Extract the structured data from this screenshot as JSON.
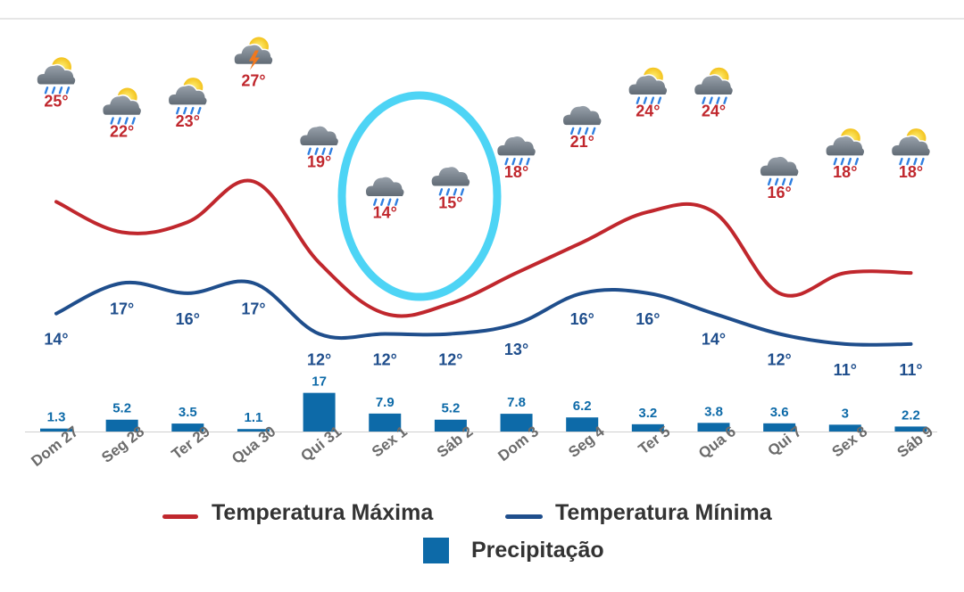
{
  "chart_data": {
    "type": "line",
    "categories": [
      "Dom 27",
      "Seg 28",
      "Ter 29",
      "Qua 30",
      "Qui 31",
      "Sex 1",
      "Sáb 2",
      "Dom 3",
      "Seg 4",
      "Ter 5",
      "Qua 6",
      "Qui 7",
      "Sex 8",
      "Sáb 9"
    ],
    "series": [
      {
        "name": "Temperatura Máxima",
        "values": [
          25,
          22,
          23,
          27,
          19,
          14,
          15,
          18,
          21,
          24,
          24,
          16,
          18,
          18
        ],
        "color": "#c0272d"
      },
      {
        "name": "Temperatura Mínima",
        "values": [
          14,
          17,
          16,
          17,
          12,
          12,
          12,
          13,
          16,
          16,
          14,
          12,
          11,
          11
        ],
        "color": "#1f4e8c"
      },
      {
        "name": "Precipitação",
        "type": "bar",
        "values": [
          1.3,
          5.2,
          3.5,
          1.1,
          17,
          7.9,
          5.2,
          7.8,
          6.2,
          3.2,
          3.8,
          3.6,
          3,
          2.2
        ],
        "color": "#0d6aa8"
      }
    ],
    "icons": [
      "partly-sunny-rain-icon",
      "partly-sunny-rain-icon",
      "partly-sunny-rain-icon",
      "sun-thunderstorm-icon",
      "rain-cloud-icon",
      "rain-cloud-icon",
      "rain-cloud-icon",
      "rain-cloud-icon",
      "rain-cloud-icon",
      "partly-sunny-rain-icon",
      "partly-sunny-rain-icon",
      "rain-cloud-icon",
      "partly-sunny-rain-icon",
      "partly-sunny-rain-icon"
    ],
    "temp_unit": "°",
    "highlight": {
      "start": "Sex 1",
      "end": "Sáb 2",
      "color": "#4dd4f5"
    },
    "legend": "bottom-center"
  }
}
